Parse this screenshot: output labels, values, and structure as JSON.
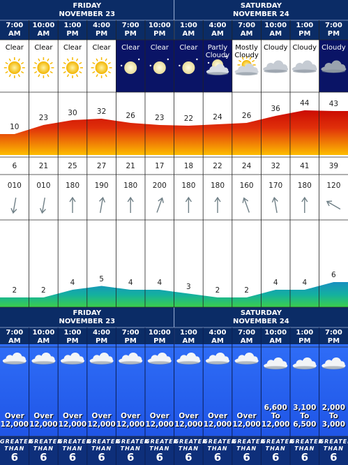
{
  "days": [
    {
      "name": "FRIDAY",
      "date": "NOVEMBER 23"
    },
    {
      "name": "SATURDAY",
      "date": "NOVEMBER 24"
    }
  ],
  "columns": [
    {
      "time": "7:00",
      "ampm": "AM",
      "sky": "Clear",
      "bg": "#ffffff",
      "temp": 10,
      "dew": 6,
      "wdir": "010",
      "wave": 2,
      "ceiling": [
        "Over",
        "12,000"
      ],
      "vis": [
        "GREATER",
        "THAN",
        "6"
      ]
    },
    {
      "time": "10:00",
      "ampm": "AM",
      "sky": "Clear",
      "bg": "#ffffff",
      "temp": 23,
      "dew": 21,
      "wdir": "010",
      "wave": 2,
      "ceiling": [
        "Over",
        "12,000"
      ],
      "vis": [
        "GREATER",
        "THAN",
        "6"
      ]
    },
    {
      "time": "1:00",
      "ampm": "PM",
      "sky": "Clear",
      "bg": "#ffffff",
      "temp": 30,
      "dew": 25,
      "wdir": "180",
      "wave": 4,
      "ceiling": [
        "Over",
        "12,000"
      ],
      "vis": [
        "GREATER",
        "THAN",
        "6"
      ]
    },
    {
      "time": "4:00",
      "ampm": "PM",
      "sky": "Clear",
      "bg": "#ffffff",
      "temp": 32,
      "dew": 27,
      "wdir": "190",
      "wave": 5,
      "ceiling": [
        "Over",
        "12,000"
      ],
      "vis": [
        "GREATER",
        "THAN",
        "6"
      ]
    },
    {
      "time": "7:00",
      "ampm": "PM",
      "sky": "Clear",
      "bg": "#0a1466",
      "temp": 26,
      "dew": 21,
      "wdir": "180",
      "wave": 4,
      "ceiling": [
        "Over",
        "12,000"
      ],
      "vis": [
        "GREATER",
        "THAN",
        "6"
      ]
    },
    {
      "time": "10:00",
      "ampm": "PM",
      "sky": "Clear",
      "bg": "#0a1466",
      "temp": 23,
      "dew": 17,
      "wdir": "200",
      "wave": 4,
      "ceiling": [
        "Over",
        "12,000"
      ],
      "vis": [
        "GREATER",
        "THAN",
        "6"
      ]
    },
    {
      "time": "1:00",
      "ampm": "AM",
      "sky": "Clear",
      "bg": "#0a1466",
      "temp": 22,
      "dew": 18,
      "wdir": "180",
      "wave": 3,
      "ceiling": [
        "Over",
        "12,000"
      ],
      "vis": [
        "GREATER",
        "THAN",
        "6"
      ]
    },
    {
      "time": "4:00",
      "ampm": "AM",
      "sky": "Partly Cloudy",
      "bg": "#0a1466",
      "temp": 24,
      "dew": 22,
      "wdir": "180",
      "wave": 2,
      "ceiling": [
        "Over",
        "12,000"
      ],
      "vis": [
        "GREATER",
        "THAN",
        "6"
      ]
    },
    {
      "time": "7:00",
      "ampm": "AM",
      "sky": "Mostly Cloudy",
      "bg": "#ffffff",
      "temp": 26,
      "dew": 24,
      "wdir": "160",
      "wave": 2,
      "ceiling": [
        "Over",
        "12,000"
      ],
      "vis": [
        "GREATER",
        "THAN",
        "6"
      ]
    },
    {
      "time": "10:00",
      "ampm": "AM",
      "sky": "Cloudy",
      "bg": "#ffffff",
      "temp": 36,
      "dew": 32,
      "wdir": "170",
      "wave": 4,
      "ceiling": [
        "6,600",
        "To",
        "12,000"
      ],
      "vis": [
        "GREATER",
        "THAN",
        "6"
      ]
    },
    {
      "time": "1:00",
      "ampm": "PM",
      "sky": "Cloudy",
      "bg": "#ffffff",
      "temp": 44,
      "dew": 41,
      "wdir": "180",
      "wave": 4,
      "ceiling": [
        "3,100",
        "To",
        "6,500"
      ],
      "vis": [
        "GREATER",
        "THAN",
        "6"
      ]
    },
    {
      "time": "7:00",
      "ampm": "PM",
      "sky": "Cloudy",
      "bg": "#0a1466",
      "temp": 43,
      "dew": 39,
      "wdir": "120",
      "wave": 6,
      "ceiling": [
        "2,000",
        "To",
        "3,000"
      ],
      "vis": [
        "GREATER",
        "THAN",
        "6"
      ]
    }
  ]
}
